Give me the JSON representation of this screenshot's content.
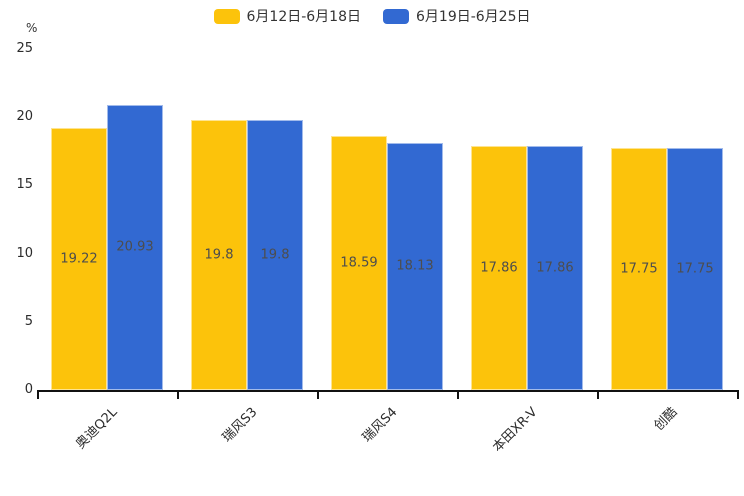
{
  "chart_data": {
    "type": "bar",
    "title": "",
    "ylabel": "%",
    "xlabel": "",
    "categories": [
      "奥迪Q2L",
      "瑞风S3",
      "瑞风S4",
      "本田XR-V",
      "创酷"
    ],
    "series": [
      {
        "name": "6月12日-6月18日",
        "color": "#FCC30B",
        "values": [
          19.22,
          19.8,
          18.59,
          17.86,
          17.75
        ]
      },
      {
        "name": "6月19日-6月25日",
        "color": "#3269D2",
        "values": [
          20.93,
          19.8,
          18.13,
          17.86,
          17.75
        ]
      }
    ],
    "ylim": [
      0,
      25
    ],
    "yticks": [
      0,
      5,
      10,
      15,
      20,
      25
    ],
    "grid": false,
    "legend_position": "top",
    "value_labels": "inside-center",
    "colors": {
      "text": "#333333",
      "value_label": "#4d4d4d",
      "axis": "#111111",
      "background": "#ffffff"
    }
  }
}
